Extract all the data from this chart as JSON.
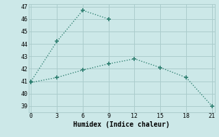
{
  "xlabel": "Humidex (Indice chaleur)",
  "bg_color": "#cce8e8",
  "grid_color": "#aacccc",
  "line_color": "#2e7f70",
  "x_ticks": [
    0,
    3,
    6,
    9,
    12,
    15,
    18,
    21
  ],
  "xlim": [
    -0.3,
    21.3
  ],
  "ylim": [
    38.5,
    47.2
  ],
  "y_ticks": [
    39,
    40,
    41,
    42,
    43,
    44,
    45,
    46,
    47
  ],
  "line1_x": [
    0,
    3,
    6,
    9
  ],
  "line1_y": [
    41.0,
    44.2,
    46.7,
    46.0
  ],
  "line2_x": [
    0,
    3,
    6,
    9,
    12,
    15,
    18,
    21
  ],
  "line2_y": [
    40.9,
    41.3,
    41.9,
    42.4,
    42.8,
    42.1,
    41.3,
    39.0
  ]
}
